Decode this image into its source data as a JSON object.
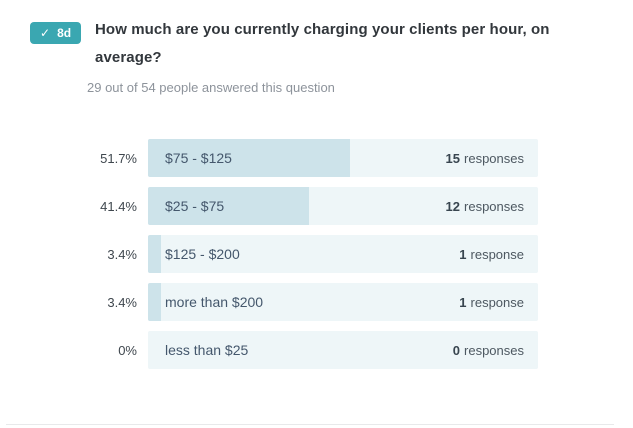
{
  "badge": {
    "check_icon": "✓",
    "label": "8d",
    "color": "#3aa7b1"
  },
  "question": {
    "title": "How much are you currently charging your clients per hour, on average?",
    "answered_summary": "29 out of 54 people answered this question"
  },
  "chart_data": {
    "type": "bar",
    "orientation": "horizontal",
    "title": "How much are you currently charging your clients per hour, on average?",
    "categories": [
      "$75 - $125",
      "$25 - $75",
      "$125 - $200",
      "more than $200",
      "less than $25"
    ],
    "values": [
      15,
      12,
      1,
      1,
      0
    ],
    "percentages": [
      51.7,
      41.4,
      3.4,
      3.4,
      0
    ],
    "respondents": 29,
    "invited": 54,
    "xlim": [
      0,
      100
    ],
    "colors": {
      "bar_fill": "#cde3ea",
      "bar_track": "#eef6f8"
    }
  },
  "rows": [
    {
      "percent": "51.7%",
      "label": "$75 - $125",
      "count": "15",
      "unit": "responses",
      "fill": 51.7
    },
    {
      "percent": "41.4%",
      "label": "$25 - $75",
      "count": "12",
      "unit": "responses",
      "fill": 41.4
    },
    {
      "percent": "3.4%",
      "label": "$125 - $200",
      "count": "1",
      "unit": "response",
      "fill": 3.4
    },
    {
      "percent": "3.4%",
      "label": "more than $200",
      "count": "1",
      "unit": "response",
      "fill": 3.4
    },
    {
      "percent": "0%",
      "label": "less than $25",
      "count": "0",
      "unit": "responses",
      "fill": 0
    }
  ]
}
